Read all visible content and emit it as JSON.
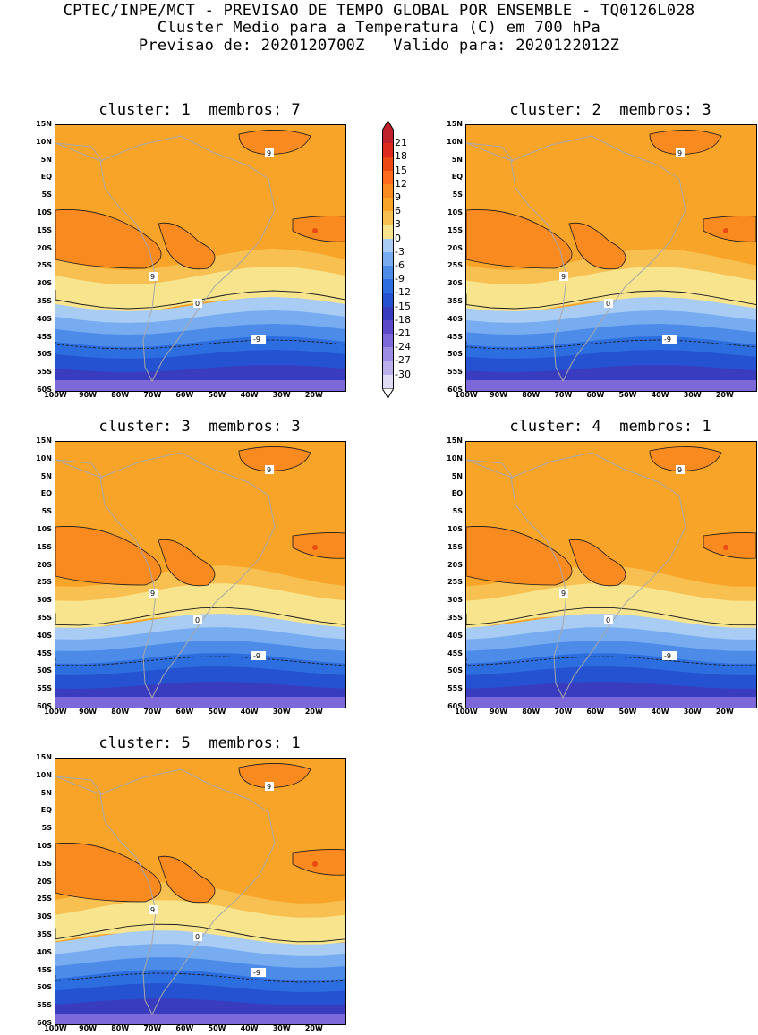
{
  "header": {
    "line1": "CPTEC/INPE/MCT - PREVISAO DE TEMPO GLOBAL POR ENSEMBLE - TQ0126L028",
    "line2": "Cluster Medio para a Temperatura (C) em 700 hPa",
    "line3": "Previsao de: 2020120700Z   Valido para: 2020122012Z"
  },
  "panels": [
    {
      "title": "cluster: 1  membros: 7"
    },
    {
      "title": "cluster: 2  membros: 3"
    },
    {
      "title": "cluster: 3  membros: 3"
    },
    {
      "title": "cluster: 4  membros: 1"
    },
    {
      "title": "cluster: 5  membros: 1"
    }
  ],
  "lat_labels": [
    "15N",
    "10N",
    "5N",
    "EQ",
    "5S",
    "10S",
    "15S",
    "20S",
    "25S",
    "30S",
    "35S",
    "40S",
    "45S",
    "50S",
    "55S",
    "60S"
  ],
  "lon_labels": [
    "100W",
    "90W",
    "80W",
    "70W",
    "60W",
    "50W",
    "40W",
    "30W",
    "20W"
  ],
  "contour_labels": {
    "warm": "9",
    "zero": "0",
    "cold": "-9"
  },
  "colorbar": {
    "labels": [
      "21",
      "18",
      "15",
      "12",
      "9",
      "6",
      "3",
      "0",
      "-3",
      "-6",
      "-9",
      "-12",
      "-15",
      "-18",
      "-21",
      "-24",
      "-27",
      "-30"
    ],
    "colors": [
      "#c0202a",
      "#dc2a1e",
      "#ec4a14",
      "#ff6a1c",
      "#f88a20",
      "#f8a428",
      "#f8c050",
      "#f8e48c",
      "#a8ccf4",
      "#78acf0",
      "#4c8ce8",
      "#2c6ee0",
      "#2452d0",
      "#3a3cc0",
      "#5a48c8",
      "#7c68d8",
      "#9c8ce4",
      "#bcb0ec",
      "#e0dcf4"
    ]
  },
  "palette": {
    "coast": "#a8a8a8",
    "contour": "#1a1a1a"
  }
}
